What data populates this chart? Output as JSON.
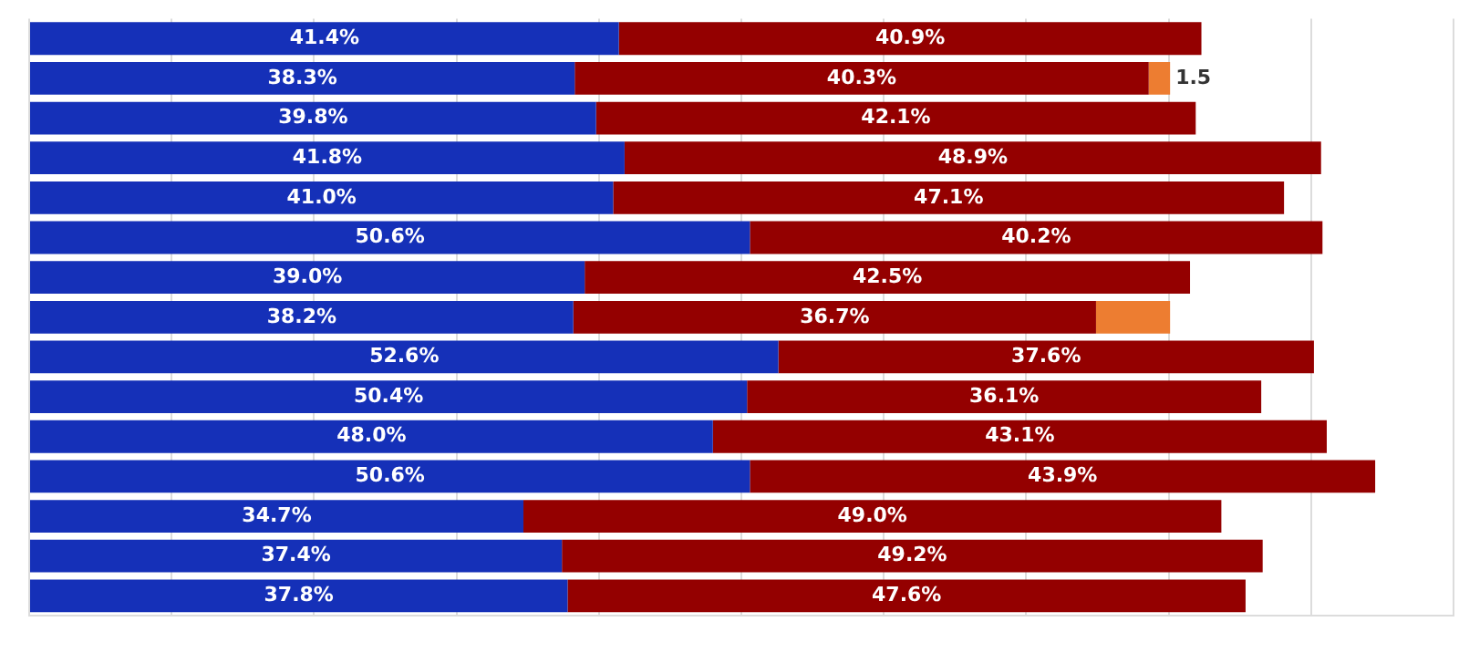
{
  "chart_data": {
    "type": "bar",
    "orientation": "horizontal",
    "stacked": true,
    "categories": [
      null,
      null,
      null,
      null,
      null,
      null,
      null,
      null,
      null,
      null,
      null,
      null,
      null,
      null,
      null
    ],
    "series": [
      {
        "color": "#1530b8",
        "values": [
          41.4,
          38.3,
          39.8,
          41.8,
          41.0,
          50.6,
          39.0,
          38.2,
          52.6,
          50.4,
          48.0,
          50.6,
          34.7,
          37.4,
          37.8
        ],
        "value_labels": [
          "41.4%",
          "38.3%",
          "39.8%",
          "41.8%",
          "41.0%",
          "50.6%",
          "39.0%",
          "38.2%",
          "52.6%",
          "50.4%",
          "48.0%",
          "50.6%",
          "34.7%",
          "37.4%",
          "37.8%"
        ]
      },
      {
        "color": "#940000",
        "values": [
          40.9,
          40.3,
          42.1,
          48.9,
          47.1,
          40.2,
          42.5,
          36.7,
          37.6,
          36.1,
          43.1,
          43.9,
          49.0,
          49.2,
          47.6
        ],
        "value_labels": [
          "40.9%",
          "40.3%",
          "42.1%",
          "48.9%",
          "47.1%",
          "40.2%",
          "42.5%",
          "36.7%",
          "37.6%",
          "36.1%",
          "43.1%",
          "43.9%",
          "49.0%",
          "49.2%",
          "47.6%"
        ]
      },
      {
        "color": "#ed7d31",
        "values": [
          null,
          1.5,
          null,
          null,
          null,
          null,
          null,
          5.2,
          null,
          null,
          null,
          null,
          null,
          null,
          null
        ],
        "value_labels": [
          null,
          "1.5",
          null,
          null,
          null,
          null,
          null,
          null,
          null,
          null,
          null,
          null,
          null,
          null,
          null
        ]
      }
    ],
    "xlim": [
      0,
      100
    ],
    "xticks": [
      {
        "value": 0,
        "label": null
      },
      {
        "value": 10,
        "label": null
      },
      {
        "value": 20,
        "label": null
      },
      {
        "value": 30,
        "label": null
      },
      {
        "value": 40,
        "label": null
      },
      {
        "value": 50,
        "label": null
      },
      {
        "value": 60,
        "label": null
      },
      {
        "value": 70,
        "label": null
      },
      {
        "value": 80,
        "label": null
      },
      {
        "value": 90,
        "label": null
      },
      {
        "value": 100,
        "label": null
      }
    ],
    "grid": "x",
    "legend": false
  }
}
